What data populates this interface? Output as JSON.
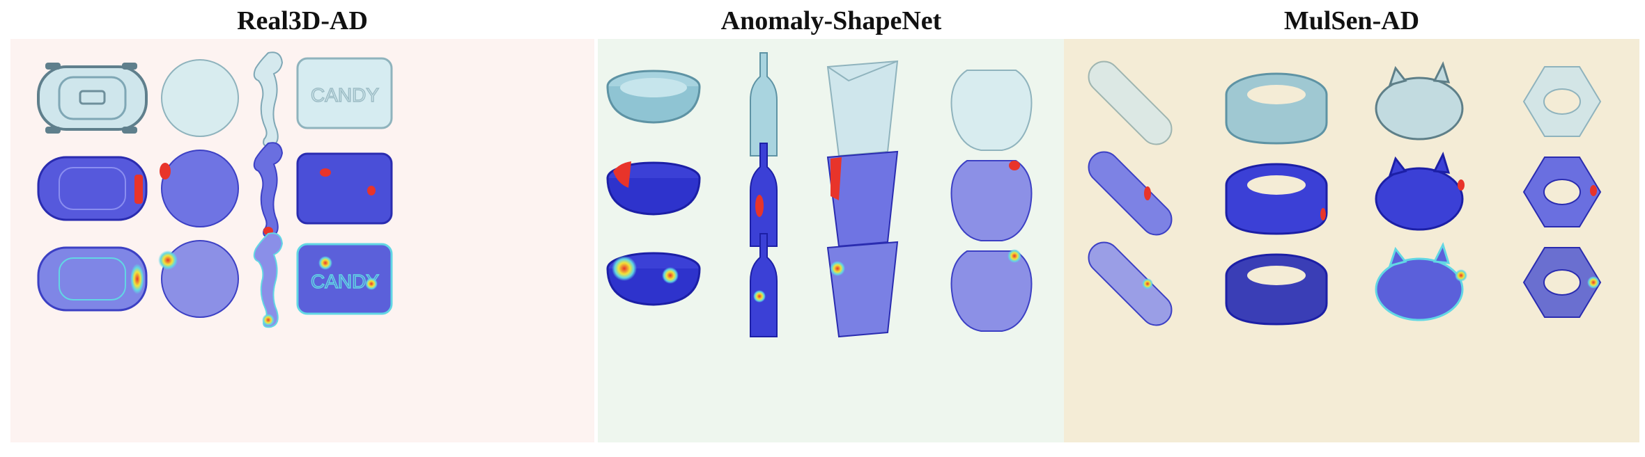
{
  "panels": [
    {
      "title": "Real3D-AD",
      "background": "#fdf3f1",
      "objects": [
        "car",
        "circular-plate",
        "seahorse",
        "candy-bag"
      ]
    },
    {
      "title": "Anomaly-ShapeNet",
      "background": "#eef6ee",
      "objects": [
        "ashtray-bowl",
        "bottle",
        "square-vase",
        "jar"
      ]
    },
    {
      "title": "MulSen-AD",
      "background": "#f4ecd6",
      "objects": [
        "capsule",
        "ring",
        "piggy-bank",
        "hex-nut"
      ]
    }
  ],
  "row_roles": [
    "input-point-cloud",
    "ground-truth-anomaly",
    "predicted-anomaly-heatmap"
  ],
  "colors": {
    "input_fill": "#cfe6ec",
    "input_stroke": "#7fa7b5",
    "gt_fill": "#4a4fd8",
    "gt_stroke": "#2a2cb0",
    "anomaly_red": "#e8342a",
    "heat_cyan": "#62d7e4",
    "heat_yellow": "#f2e33a"
  },
  "candy_text": "CANDY"
}
